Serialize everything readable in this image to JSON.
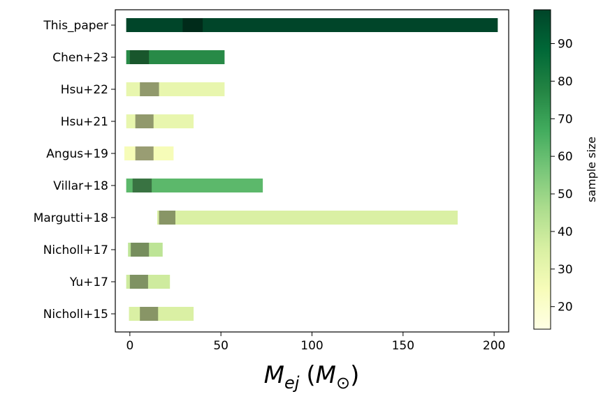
{
  "chart_data": {
    "type": "bar",
    "orientation": "horizontal",
    "title": "",
    "xlabel_parts": {
      "main": "M",
      "main_sub": "ej",
      "open": "(",
      "unit": "M",
      "unit_sub": "⊙",
      "close": ")"
    },
    "ylabel": "",
    "xlim": [
      -8,
      208
    ],
    "xticks": [
      0,
      50,
      100,
      150,
      200
    ],
    "colorbar": {
      "label": "sample size",
      "range": [
        14,
        99
      ],
      "ticks": [
        20,
        30,
        40,
        50,
        60,
        70,
        80,
        90
      ],
      "colormap": "YlGn"
    },
    "grid": false,
    "categories": [
      "This_paper",
      "Chen+23",
      "Hsu+22",
      "Hsu+21",
      "Angus+19",
      "Villar+18",
      "Margutti+18",
      "Nicholl+17",
      "Yu+17",
      "Nicholl+15"
    ],
    "ranges": [
      {
        "name": "This_paper",
        "min": -2,
        "max": 202,
        "core_min": 29,
        "core_max": 40,
        "sample_size": 99
      },
      {
        "name": "Chen+23",
        "min": -2,
        "max": 52,
        "core_min": 0,
        "core_max": 10.5,
        "sample_size": 76
      },
      {
        "name": "Hsu+22",
        "min": -2,
        "max": 52,
        "core_min": 5.5,
        "core_max": 16,
        "sample_size": 30
      },
      {
        "name": "Hsu+21",
        "min": -2,
        "max": 35,
        "core_min": 3,
        "core_max": 13,
        "sample_size": 30
      },
      {
        "name": "Angus+19",
        "min": -3,
        "max": 24,
        "core_min": 3,
        "core_max": 13,
        "sample_size": 25
      },
      {
        "name": "Villar+18",
        "min": -2,
        "max": 73,
        "core_min": 1.5,
        "core_max": 12,
        "sample_size": 62
      },
      {
        "name": "Margutti+18",
        "min": 15,
        "max": 180,
        "core_min": 16,
        "core_max": 25,
        "sample_size": 35
      },
      {
        "name": "Nicholl+17",
        "min": -1,
        "max": 18,
        "core_min": 0.5,
        "core_max": 10.5,
        "sample_size": 42
      },
      {
        "name": "Yu+17",
        "min": -2,
        "max": 22,
        "core_min": 0,
        "core_max": 10,
        "sample_size": 38
      },
      {
        "name": "Nicholl+15",
        "min": -0.5,
        "max": 35,
        "core_min": 5.5,
        "core_max": 15.5,
        "sample_size": 35
      }
    ]
  }
}
